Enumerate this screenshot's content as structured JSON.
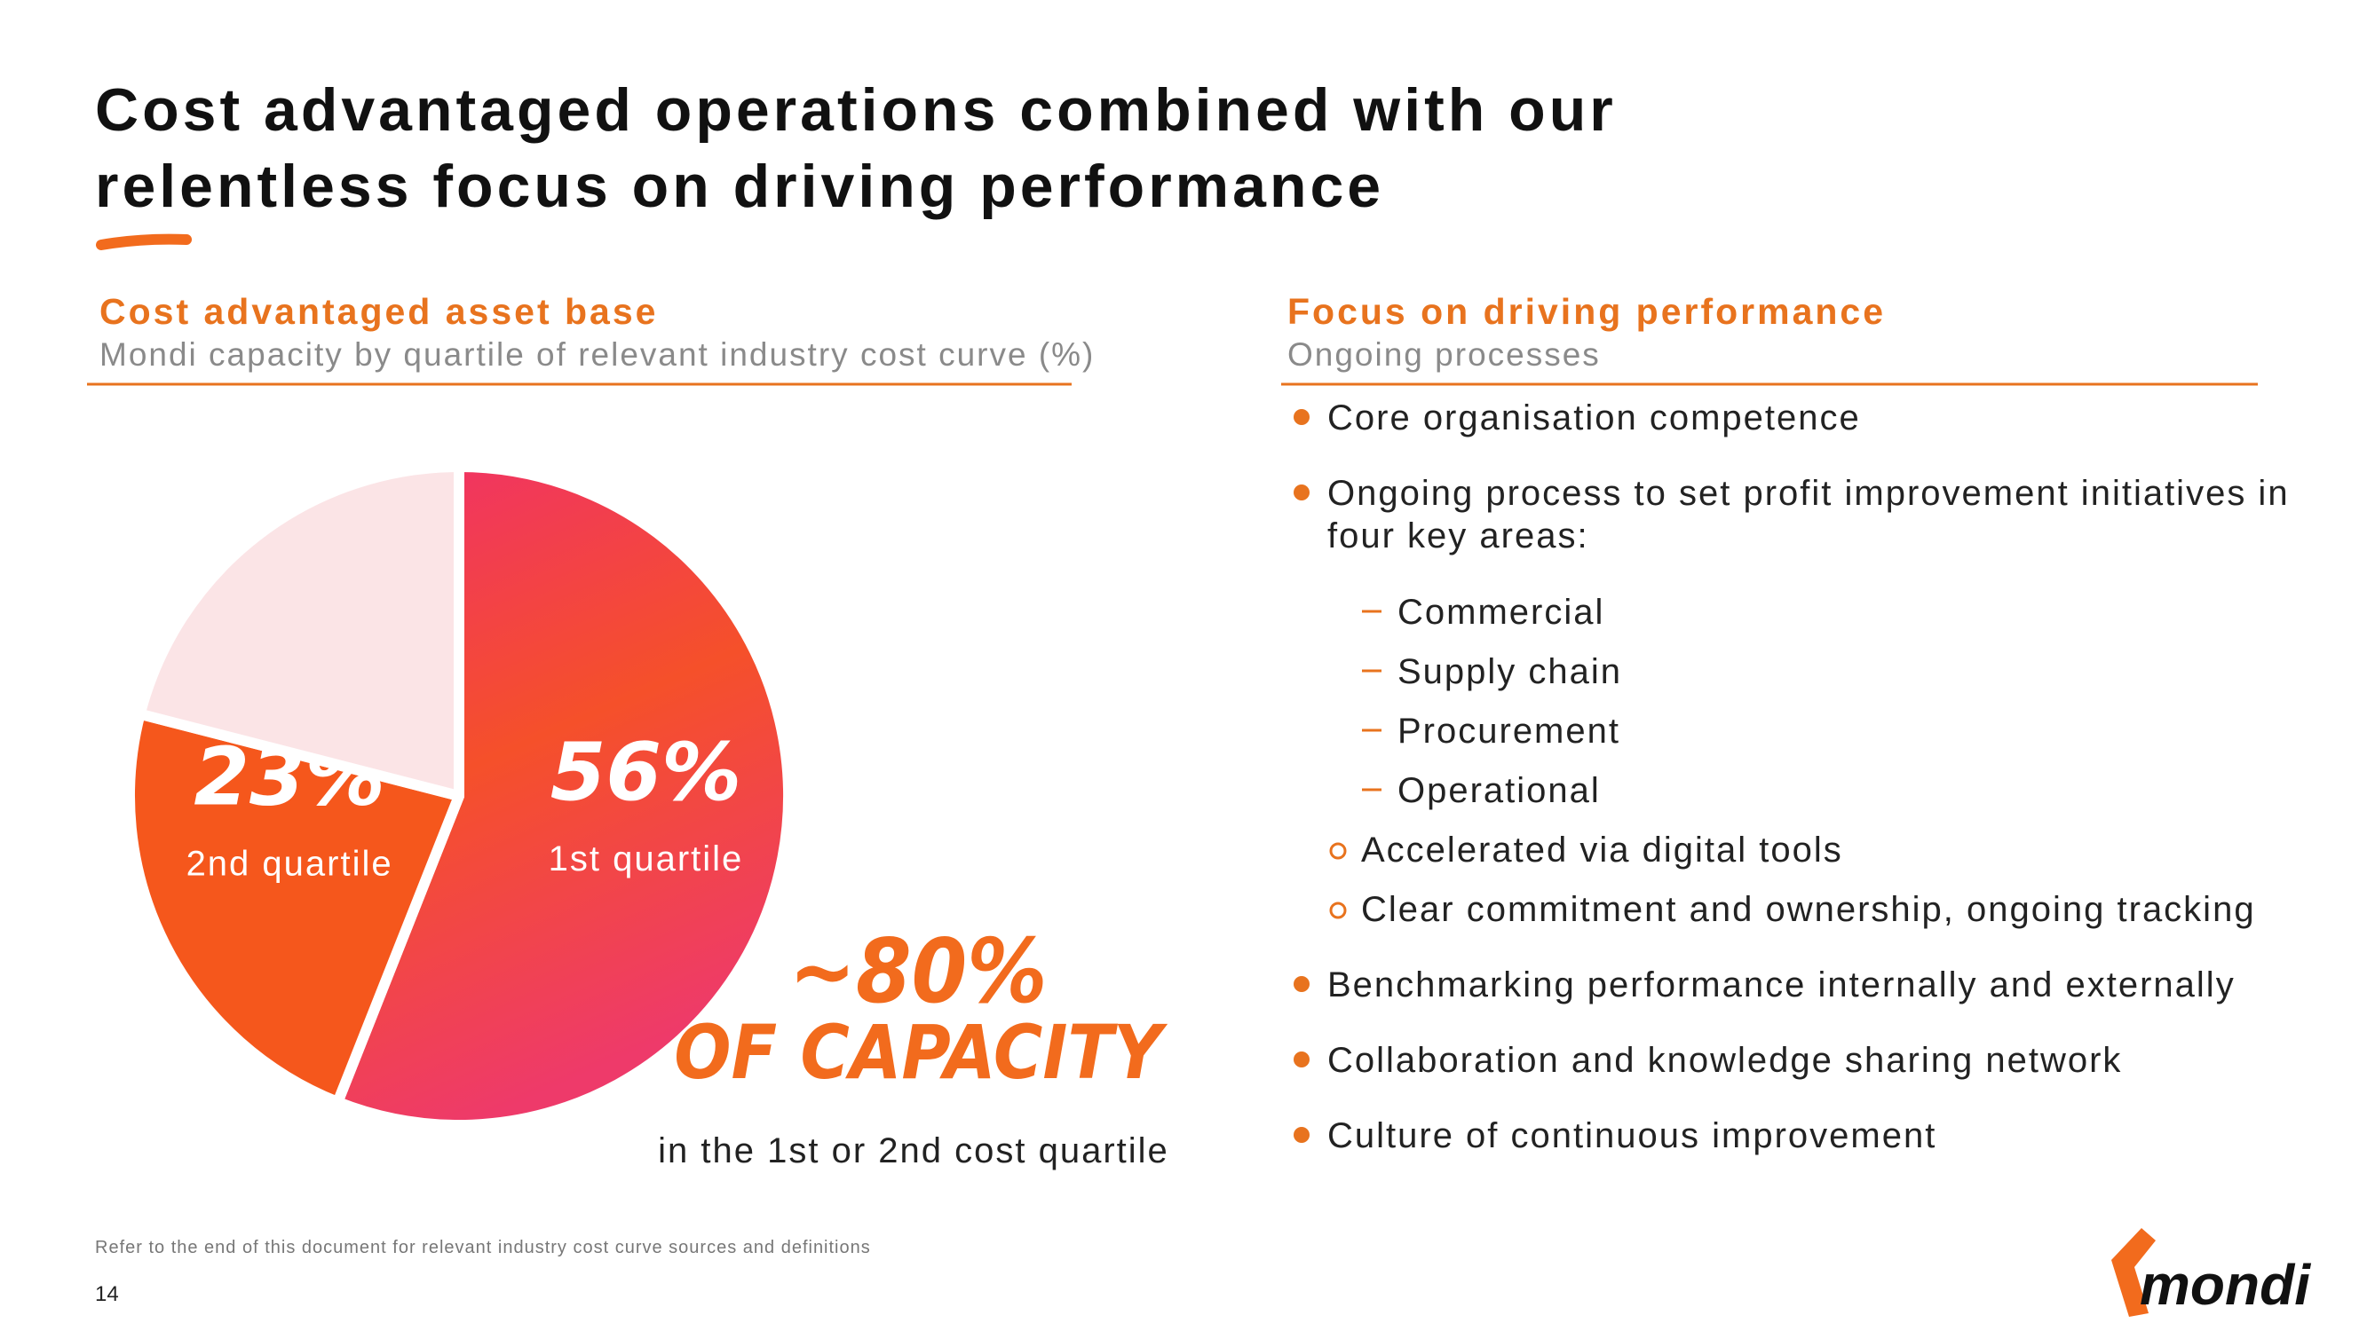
{
  "title": [
    "Cost advantaged operations combined with our",
    "relentless focus on driving performance"
  ],
  "left": {
    "heading": "Cost advantaged asset base",
    "subheading": "Mondi capacity by quartile of relevant industry cost curve (%)"
  },
  "chart_data": {
    "type": "pie",
    "categories": [
      "1st quartile",
      "2nd quartile",
      null
    ],
    "values": [
      56,
      23,
      21
    ],
    "value_labels": [
      "56%",
      "23%",
      null
    ],
    "colors": [
      "#f2452f",
      "#f5571c",
      "#fbe4e6"
    ]
  },
  "annotation": {
    "headline": "~80%",
    "subline": "OF CAPACITY",
    "caption": "in the 1st or 2nd cost quartile"
  },
  "right": {
    "heading": "Focus on driving performance",
    "subheading": "Ongoing processes",
    "bullets": [
      {
        "text": [
          "Core organisation competence"
        ]
      },
      {
        "text": [
          "Ongoing process to set profit improvement initiatives in",
          "four key areas:"
        ],
        "dashes": [
          "Commercial",
          "Supply chain",
          "Procurement",
          "Operational"
        ],
        "circles": [
          "Accelerated via digital tools",
          "Clear commitment and ownership, ongoing tracking"
        ]
      },
      {
        "text": [
          "Benchmarking performance internally and externally"
        ]
      },
      {
        "text": [
          "Collaboration and knowledge sharing network"
        ]
      },
      {
        "text": [
          "Culture of continuous improvement"
        ]
      }
    ]
  },
  "footnote": "Refer to the end of this document for relevant industry cost curve sources and definitions",
  "page_number": "14",
  "logo": "mondi"
}
